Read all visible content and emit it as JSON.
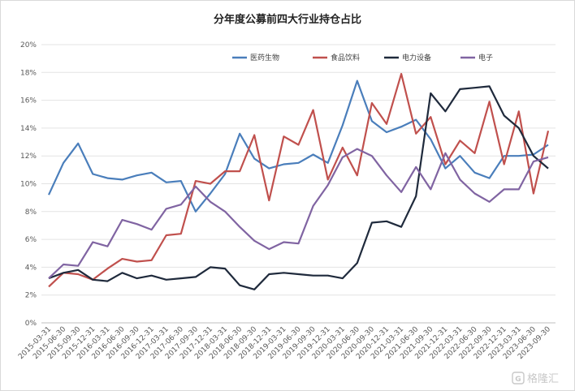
{
  "chart_data": {
    "type": "line",
    "title": "分年度公募前四大行业持仓占比",
    "x": [
      "2015-03-31",
      "2015-06-30",
      "2015-09-30",
      "2015-12-31",
      "2016-03-31",
      "2016-06-30",
      "2016-09-30",
      "2016-12-31",
      "2017-03-31",
      "2017-06-30",
      "2017-09-30",
      "2017-12-31",
      "2018-03-31",
      "2018-06-30",
      "2018-09-30",
      "2018-12-31",
      "2019-03-31",
      "2019-06-30",
      "2019-09-30",
      "2019-12-31",
      "2020-03-31",
      "2020-06-30",
      "2020-09-30",
      "2020-12-31",
      "2021-03-31",
      "2021-06-30",
      "2021-09-30",
      "2021-12-31",
      "2022-03-31",
      "2022-06-30",
      "2022-09-30",
      "2022-12-31",
      "2023-03-31",
      "2023-06-30",
      "2023-09-30"
    ],
    "x_tick_labels": [
      "2015-03-31",
      "2015-06-30",
      "2015-09-30",
      "2015-12-31",
      "2016-03-31",
      "2016-06-30",
      "2016-09-30",
      "2016-12-31",
      "2017-03-31",
      "2017-06-30",
      "2017-09-30",
      "2017-12-31",
      "2018-03-31",
      "2018-06-30",
      "2018-09-30",
      "2018-12-31",
      "2019-03-31",
      "2019-06-30",
      "2019-09-30",
      "2019-12-31",
      "2020-03-31",
      "2020-06-30",
      "2020-09-30",
      "2020-12-31",
      "2021-03-31",
      "2021-06-30",
      "2021-09-30",
      "2021-12-31",
      "2022-03-31",
      "2022-06-30",
      "2022-09-30",
      "2022-12-31",
      "2023-03-31",
      "2023-06-30",
      "2023-09-30"
    ],
    "ylim": [
      0,
      20
    ],
    "y_ticks": [
      0,
      2,
      4,
      6,
      8,
      10,
      12,
      14,
      16,
      18,
      20
    ],
    "y_tick_labels": [
      "0%",
      "2%",
      "4%",
      "6%",
      "8%",
      "10%",
      "12%",
      "14%",
      "16%",
      "18%",
      "20%"
    ],
    "grid": "horizontal",
    "legend_position": "top-right",
    "series": [
      {
        "name": "医药生物",
        "color": "#4a7ebb",
        "values": [
          9.2,
          11.5,
          12.9,
          10.7,
          10.4,
          10.3,
          10.6,
          10.8,
          10.1,
          10.2,
          8.0,
          9.3,
          10.7,
          13.6,
          11.8,
          11.1,
          11.4,
          11.5,
          12.1,
          11.5,
          14.2,
          17.4,
          14.5,
          13.7,
          14.1,
          14.6,
          13.2,
          11.1,
          12.0,
          10.8,
          10.4,
          12.0,
          12.0,
          12.1,
          12.8
        ]
      },
      {
        "name": "食品饮料",
        "color": "#c0504d",
        "values": [
          2.6,
          3.6,
          3.5,
          3.1,
          3.9,
          4.6,
          4.4,
          4.5,
          6.3,
          6.4,
          10.2,
          10.0,
          10.9,
          10.9,
          13.5,
          8.8,
          13.4,
          12.8,
          15.3,
          10.3,
          12.6,
          10.6,
          15.8,
          14.3,
          17.9,
          13.6,
          14.8,
          11.4,
          13.1,
          12.2,
          15.9,
          11.4,
          15.2,
          9.3,
          13.8
        ]
      },
      {
        "name": "电力设备",
        "color": "#1f2a3c",
        "values": [
          3.2,
          3.6,
          3.8,
          3.1,
          3.0,
          3.6,
          3.2,
          3.4,
          3.1,
          3.2,
          3.3,
          4.0,
          3.9,
          2.7,
          2.4,
          3.5,
          3.6,
          3.5,
          3.4,
          3.4,
          3.2,
          4.3,
          7.2,
          7.3,
          6.9,
          9.1,
          16.5,
          15.2,
          16.8,
          16.9,
          17.0,
          14.9,
          14.0,
          12.0,
          11.1
        ]
      },
      {
        "name": "电子",
        "color": "#8064a2",
        "values": [
          3.2,
          4.2,
          4.1,
          5.8,
          5.5,
          7.4,
          7.1,
          6.7,
          8.2,
          8.5,
          9.8,
          8.7,
          8.0,
          6.9,
          5.9,
          5.3,
          5.8,
          5.7,
          8.4,
          9.9,
          11.9,
          12.5,
          12.0,
          10.6,
          9.4,
          11.2,
          9.6,
          12.2,
          10.3,
          9.3,
          8.7,
          9.6,
          9.6,
          11.6,
          11.9
        ]
      }
    ]
  },
  "watermark": {
    "text": "格隆汇",
    "icon": "gelonghui-logo-icon"
  }
}
